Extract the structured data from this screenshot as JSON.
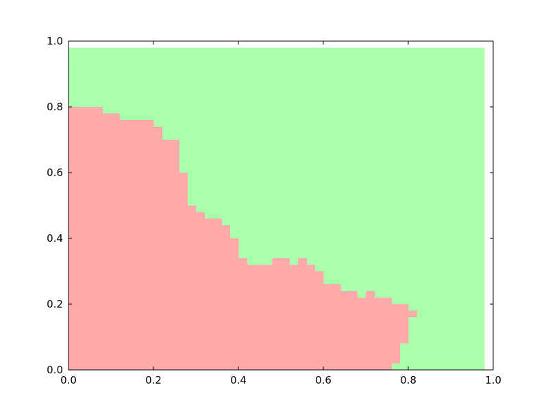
{
  "chart_data": {
    "type": "heatmap",
    "title": "",
    "xlabel": "",
    "ylabel": "",
    "xlim": [
      0.0,
      1.0
    ],
    "ylim": [
      0.0,
      1.0
    ],
    "grid": false,
    "legend": "none",
    "grid_resolution": 0.02,
    "classes": [
      {
        "name": "class-0",
        "color": "#ffaaaa"
      },
      {
        "name": "class-1",
        "color": "#aaffaa"
      }
    ],
    "background_region": {
      "class": "class-1",
      "x_range": [
        0.0,
        0.98
      ],
      "y_range": [
        0.0,
        0.98
      ]
    },
    "red_region_profile": [
      {
        "x0": 0.0,
        "x1": 0.08,
        "ytop": 0.8
      },
      {
        "x0": 0.08,
        "x1": 0.12,
        "ytop": 0.78
      },
      {
        "x0": 0.12,
        "x1": 0.2,
        "ytop": 0.76
      },
      {
        "x0": 0.2,
        "x1": 0.22,
        "ytop": 0.74
      },
      {
        "x0": 0.22,
        "x1": 0.26,
        "ytop": 0.7
      },
      {
        "x0": 0.26,
        "x1": 0.28,
        "ytop": 0.6
      },
      {
        "x0": 0.28,
        "x1": 0.3,
        "ytop": 0.5
      },
      {
        "x0": 0.3,
        "x1": 0.32,
        "ytop": 0.48
      },
      {
        "x0": 0.32,
        "x1": 0.36,
        "ytop": 0.46
      },
      {
        "x0": 0.36,
        "x1": 0.38,
        "ytop": 0.44
      },
      {
        "x0": 0.38,
        "x1": 0.4,
        "ytop": 0.4
      },
      {
        "x0": 0.4,
        "x1": 0.42,
        "ytop": 0.34
      },
      {
        "x0": 0.42,
        "x1": 0.48,
        "ytop": 0.32
      },
      {
        "x0": 0.48,
        "x1": 0.52,
        "ytop": 0.34
      },
      {
        "x0": 0.52,
        "x1": 0.54,
        "ytop": 0.32
      },
      {
        "x0": 0.54,
        "x1": 0.56,
        "ytop": 0.34
      },
      {
        "x0": 0.56,
        "x1": 0.58,
        "ytop": 0.32
      },
      {
        "x0": 0.58,
        "x1": 0.6,
        "ytop": 0.3
      },
      {
        "x0": 0.6,
        "x1": 0.64,
        "ytop": 0.26
      },
      {
        "x0": 0.64,
        "x1": 0.68,
        "ytop": 0.24
      },
      {
        "x0": 0.68,
        "x1": 0.7,
        "ytop": 0.22
      },
      {
        "x0": 0.7,
        "x1": 0.72,
        "ytop": 0.24
      },
      {
        "x0": 0.72,
        "x1": 0.76,
        "ytop": 0.22
      },
      {
        "x0": 0.76,
        "x1": 0.78,
        "ytop": 0.2,
        "ybottom": 0.02
      },
      {
        "x0": 0.78,
        "x1": 0.8,
        "ytop": 0.2,
        "ybottom": 0.08
      },
      {
        "x0": 0.8,
        "x1": 0.82,
        "ytop": 0.18,
        "ybottom": 0.16
      }
    ],
    "x_ticks": [
      {
        "value": 0.0,
        "label": "0.0"
      },
      {
        "value": 0.2,
        "label": "0.2"
      },
      {
        "value": 0.4,
        "label": "0.4"
      },
      {
        "value": 0.6,
        "label": "0.6"
      },
      {
        "value": 0.8,
        "label": "0.8"
      },
      {
        "value": 1.0,
        "label": "1.0"
      }
    ],
    "y_ticks": [
      {
        "value": 0.0,
        "label": "0.0"
      },
      {
        "value": 0.2,
        "label": "0.2"
      },
      {
        "value": 0.4,
        "label": "0.4"
      },
      {
        "value": 0.6,
        "label": "0.6"
      },
      {
        "value": 0.8,
        "label": "0.8"
      },
      {
        "value": 1.0,
        "label": "1.0"
      }
    ]
  }
}
